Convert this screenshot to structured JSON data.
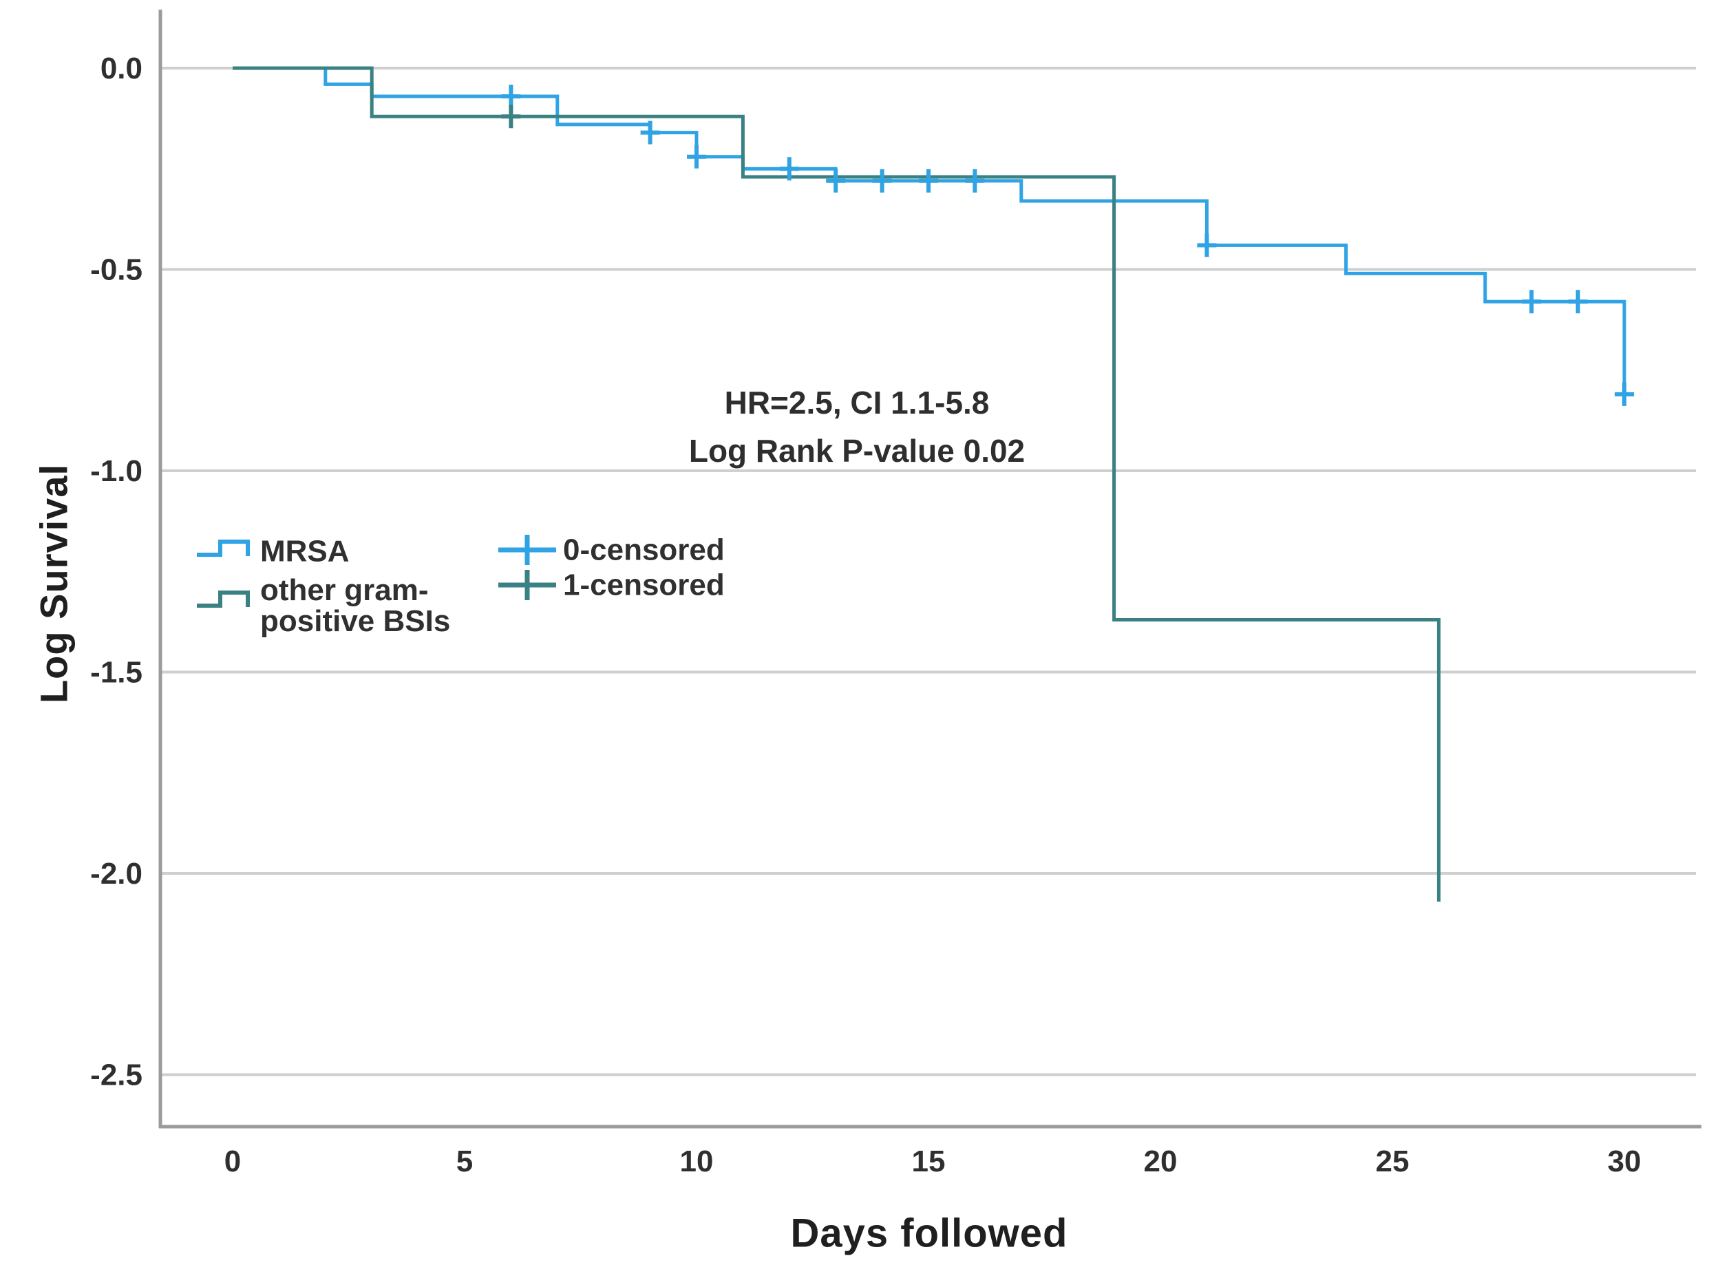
{
  "figure": {
    "y_axis_title": "Log Survival",
    "x_axis_title": "Days followed",
    "annotation": {
      "line1": "HR=2.5, CI 1.1-5.8",
      "line2": "Log Rank P-value 0.02"
    },
    "legend": {
      "series": [
        {
          "label": "MRSA",
          "label2": "",
          "color": "#2FA3E4"
        },
        {
          "label": "other gram-",
          "label2": "positive BSIs",
          "color": "#3A8183"
        }
      ],
      "censored": [
        {
          "label": "0-censored",
          "color": "#2FA3E4"
        },
        {
          "label": "1-censored",
          "color": "#3A8183"
        }
      ]
    }
  },
  "style": {
    "series_blue": "#2FA3E4",
    "series_teal": "#3A8183",
    "grid_color": "#cfcfcf",
    "axis_color": "#9b9b9b",
    "tick_text_color": "#2f2f2f",
    "background": "#ffffff"
  },
  "chart_data": {
    "type": "line",
    "subtype": "kaplan-meier-log-survival-steps",
    "title": "",
    "xlabel": "Days followed",
    "ylabel": "Log Survival",
    "xlim": [
      0,
      30
    ],
    "ylim": [
      -2.5,
      0
    ],
    "x_ticks": [
      0,
      5,
      10,
      15,
      20,
      25,
      30
    ],
    "y_ticks": [
      {
        "v": 0,
        "label": "0.0"
      },
      {
        "v": -0.5,
        "label": "-0.5"
      },
      {
        "v": -1.0,
        "label": "-1.0"
      },
      {
        "v": -1.5,
        "label": "-1.5"
      },
      {
        "v": -2.0,
        "label": "-2.0"
      },
      {
        "v": -2.5,
        "label": "-2.5"
      }
    ],
    "grid": "horizontal",
    "legend_position": "inside-upper-left-of-mid",
    "annotations": [
      "HR=2.5, CI 1.1-5.8",
      "Log Rank P-value 0.02"
    ],
    "series": [
      {
        "name": "MRSA",
        "color": "#2FA3E4",
        "steps": [
          [
            0,
            0
          ],
          [
            2,
            -0.04
          ],
          [
            3,
            -0.07
          ],
          [
            7,
            -0.14
          ],
          [
            9,
            -0.16
          ],
          [
            10,
            -0.22
          ],
          [
            11,
            -0.25
          ],
          [
            13,
            -0.28
          ],
          [
            17,
            -0.33
          ],
          [
            21,
            -0.44
          ],
          [
            24,
            -0.51
          ],
          [
            27,
            -0.58
          ],
          [
            30,
            -0.81
          ]
        ],
        "censored": [
          [
            6,
            -0.07
          ],
          [
            9,
            -0.16
          ],
          [
            10,
            -0.22
          ],
          [
            12,
            -0.25
          ],
          [
            13,
            -0.28
          ],
          [
            14,
            -0.28
          ],
          [
            15,
            -0.28
          ],
          [
            16,
            -0.28
          ],
          [
            21,
            -0.44
          ],
          [
            28,
            -0.58
          ],
          [
            29,
            -0.58
          ],
          [
            30,
            -0.81
          ]
        ]
      },
      {
        "name": "other gram-positive BSIs",
        "color": "#3A8183",
        "steps": [
          [
            0,
            0
          ],
          [
            3,
            -0.12
          ],
          [
            11,
            -0.27
          ],
          [
            19,
            -1.37
          ],
          [
            26,
            -2.07
          ]
        ],
        "censored": [
          [
            6,
            -0.12
          ]
        ]
      }
    ]
  }
}
